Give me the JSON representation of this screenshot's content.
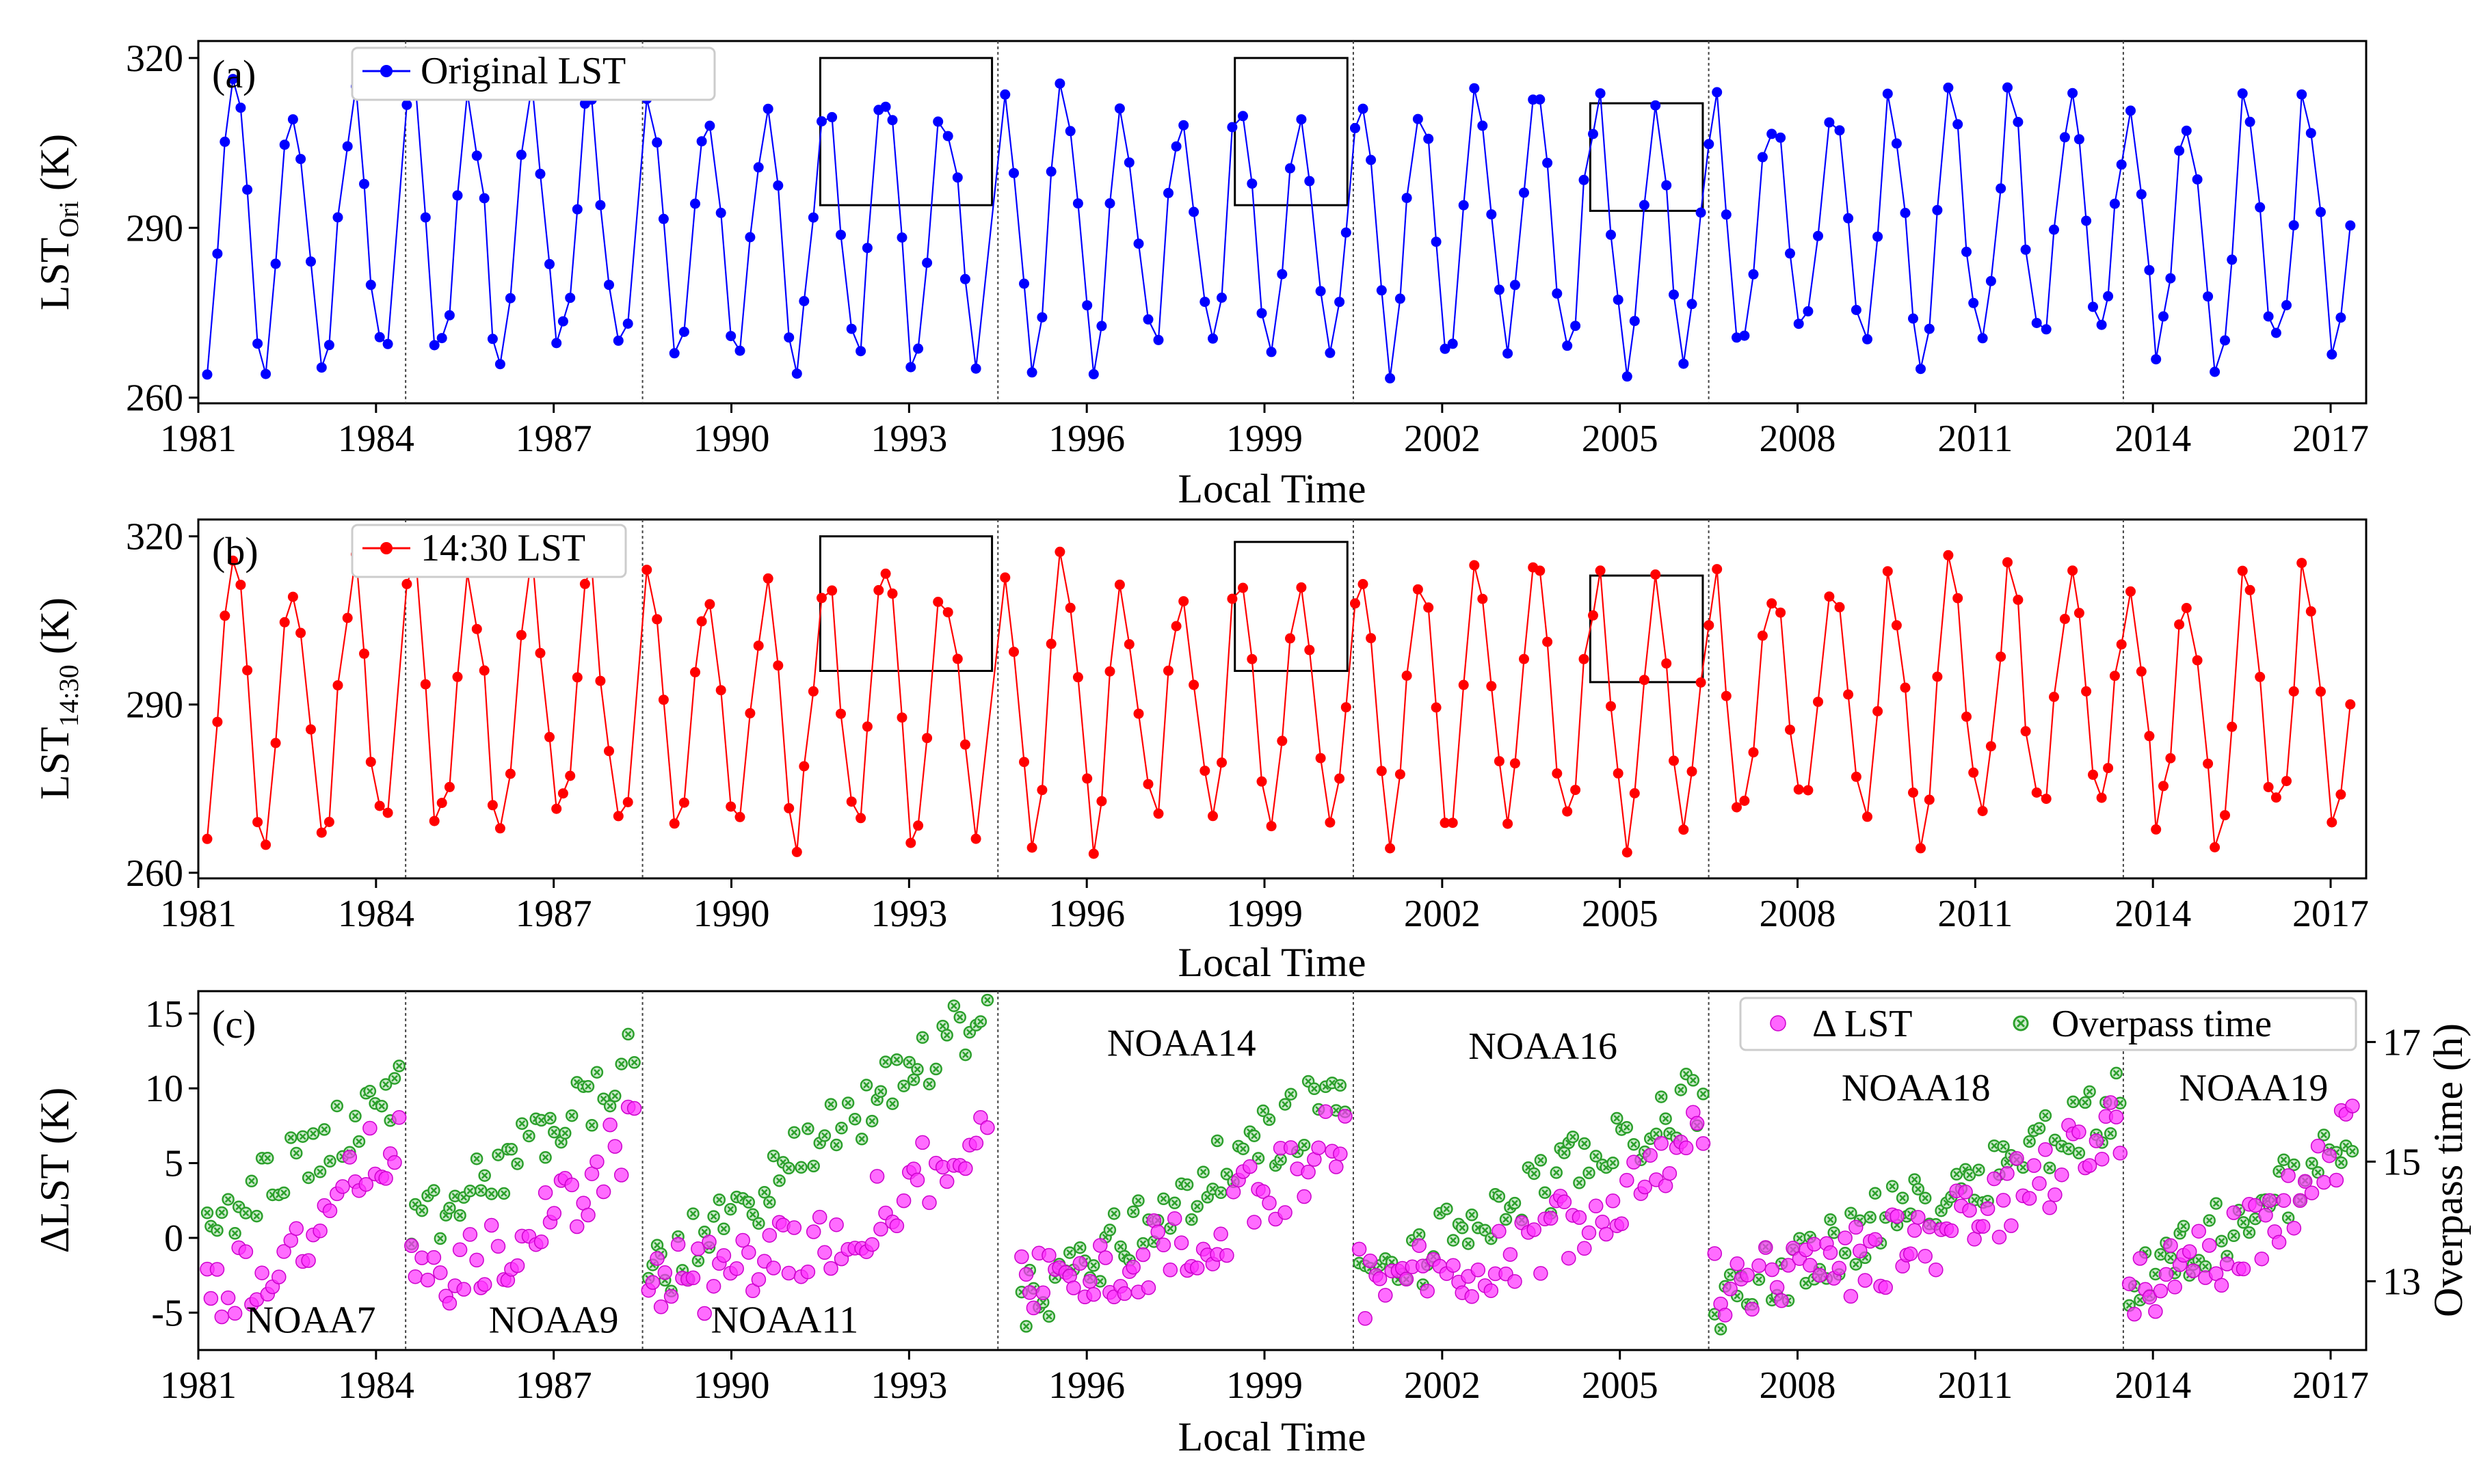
{
  "chart_data": [
    {
      "panel": "(a)",
      "type": "line",
      "ylabel_main": "LST",
      "ylabel_sub": "Ori",
      "ylabel_unit": " (K)",
      "xlabel": "Local Time",
      "xlim": [
        1981,
        2017.6
      ],
      "ylim": [
        259,
        323
      ],
      "yticks": [
        260,
        290,
        320
      ],
      "xticks": [
        "1981",
        "1984",
        "1987",
        "1990",
        "1993",
        "1996",
        "1999",
        "2002",
        "2005",
        "2008",
        "2011",
        "2014",
        "2017"
      ],
      "legend": "top-left",
      "series": [
        {
          "name": "Original LST",
          "color": "#0000ff",
          "marker": "circle"
        }
      ],
      "boxes": [
        [
          1991.5,
          1994.4,
          294,
          320
        ],
        [
          1998.5,
          2000.4,
          294,
          320
        ],
        [
          2004.5,
          2006.4,
          293,
          312
        ]
      ]
    },
    {
      "panel": "(b)",
      "type": "line",
      "ylabel_main": "LST",
      "ylabel_sub": "14:30",
      "ylabel_unit": " (K)",
      "xlabel": "Local Time",
      "xlim": [
        1981,
        2017.6
      ],
      "ylim": [
        259,
        323
      ],
      "yticks": [
        260,
        290,
        320
      ],
      "xticks": [
        "1981",
        "1984",
        "1987",
        "1990",
        "1993",
        "1996",
        "1999",
        "2002",
        "2005",
        "2008",
        "2011",
        "2014",
        "2017"
      ],
      "legend": "top-left",
      "series": [
        {
          "name": "14:30 LST",
          "color": "#ff0000",
          "marker": "circle"
        }
      ],
      "boxes": [
        [
          1991.5,
          1994.4,
          296,
          320
        ],
        [
          1998.5,
          2000.4,
          296,
          319
        ],
        [
          2004.5,
          2006.4,
          294,
          313
        ]
      ]
    },
    {
      "panel": "(c)",
      "type": "scatter",
      "ylabel": "ΔLST (K)",
      "ylabel_right": "Overpass time (h)",
      "xlabel": "Local Time",
      "xlim": [
        1981,
        2017.6
      ],
      "ylim": [
        -7.5,
        16.5
      ],
      "ylim_right": [
        11.85,
        17.85
      ],
      "yticks": [
        -5,
        0,
        5,
        10,
        15
      ],
      "yticks_right": [
        13,
        15,
        17
      ],
      "xticks": [
        "1981",
        "1984",
        "1987",
        "1990",
        "1993",
        "1996",
        "1999",
        "2002",
        "2005",
        "2008",
        "2011",
        "2014",
        "2017"
      ],
      "legend": "top-right",
      "series": [
        {
          "name": "Δ LST",
          "color": "#ff33ff",
          "marker": "circle",
          "axis": "left"
        },
        {
          "name": "Overpass time",
          "color": "#2ca02c",
          "marker": "x-circle",
          "axis": "right"
        }
      ],
      "satellite_labels": [
        {
          "name": "NOAA7",
          "x": 1982.9,
          "y": -5.5
        },
        {
          "name": "NOAA9",
          "x": 1987.0,
          "y": -5.5
        },
        {
          "name": "NOAA11",
          "x": 1990.9,
          "y": -5.5
        },
        {
          "name": "NOAA14",
          "x": 1997.6,
          "y": 13.0
        },
        {
          "name": "NOAA16",
          "x": 2003.7,
          "y": 12.8
        },
        {
          "name": "NOAA18",
          "x": 2010.0,
          "y": 10.0
        },
        {
          "name": "NOAA19",
          "x": 2015.7,
          "y": 10.0
        }
      ]
    }
  ],
  "satellite_boundaries": [
    1984.5,
    1988.5,
    1994.5,
    2000.5,
    2006.5,
    2013.5
  ],
  "panels": [
    {
      "label": "(a)",
      "legend": "Original LST",
      "xlabel": "Local Time"
    },
    {
      "label": "(b)",
      "legend": "14:30 LST",
      "xlabel": "Local Time"
    },
    {
      "label": "(c)",
      "legend1": "Δ LST",
      "legend2": "Overpass time",
      "xlabel": "Local Time",
      "ylabel": "ΔLST (K)",
      "ylabel_right": "Overpass time (h)"
    }
  ]
}
